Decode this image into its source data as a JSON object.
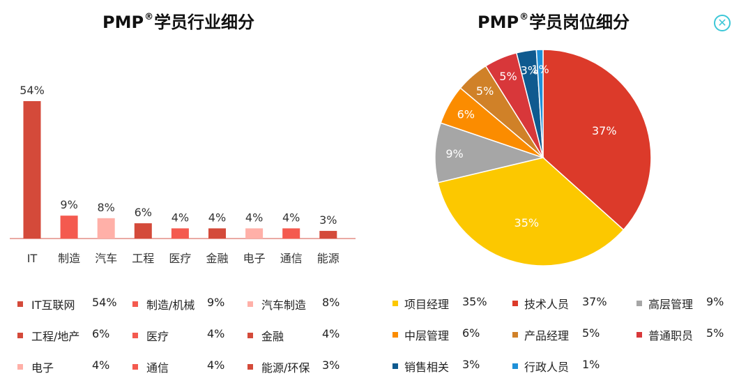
{
  "close_icon": "close-icon",
  "chart_data": [
    {
      "type": "bar",
      "title_main": "PMP",
      "title_sup": "®",
      "title_rest": "学员行业细分",
      "categories": [
        "IT",
        "制造",
        "汽车",
        "工程",
        "医疗",
        "金融",
        "电子",
        "通信",
        "能源"
      ],
      "values": [
        54,
        9,
        8,
        6,
        4,
        4,
        4,
        4,
        3
      ],
      "value_labels": [
        "54%",
        "9%",
        "8%",
        "6%",
        "4%",
        "4%",
        "4%",
        "4%",
        "3%"
      ],
      "colors": [
        "#d44a3a",
        "#f45a4f",
        "#ffb0a8",
        "#d44a3a",
        "#f45a4f",
        "#d44a3a",
        "#ffb0a8",
        "#f45a4f",
        "#d44a3a"
      ],
      "ylim": [
        0,
        54
      ],
      "legend": [
        {
          "label": "IT互联网",
          "value": "54%",
          "color": "#d44a3a"
        },
        {
          "label": "制造/机械",
          "value": "9%",
          "color": "#f45a4f"
        },
        {
          "label": "汽车制造",
          "value": "8%",
          "color": "#ffb0a8"
        },
        {
          "label": "工程/地产",
          "value": "6%",
          "color": "#d44a3a"
        },
        {
          "label": "医疗",
          "value": "4%",
          "color": "#f45a4f"
        },
        {
          "label": "金融",
          "value": "4%",
          "color": "#d44a3a"
        },
        {
          "label": "电子",
          "value": "4%",
          "color": "#ffb0a8"
        },
        {
          "label": "通信",
          "value": "4%",
          "color": "#f45a4f"
        },
        {
          "label": "能源/环保",
          "value": "3%",
          "color": "#d44a3a"
        }
      ]
    },
    {
      "type": "pie",
      "title_main": "PMP",
      "title_sup": "®",
      "title_rest": "学员岗位细分",
      "slices": [
        {
          "label": "技术人员",
          "value": 37,
          "text": "37%",
          "color": "#dc3a2a"
        },
        {
          "label": "项目经理",
          "value": 35,
          "text": "35%",
          "color": "#fcc800"
        },
        {
          "label": "高层管理",
          "value": 9,
          "text": "9%",
          "color": "#a6a6a6"
        },
        {
          "label": "中层管理",
          "value": 6,
          "text": "6%",
          "color": "#fb8c00"
        },
        {
          "label": "产品经理",
          "value": 5,
          "text": "5%",
          "color": "#d08128"
        },
        {
          "label": "普通职员",
          "value": 5,
          "text": "5%",
          "color": "#d8373a"
        },
        {
          "label": "销售相关",
          "value": 3,
          "text": "3%",
          "color": "#0f5a8f"
        },
        {
          "label": "行政人员",
          "value": 1,
          "text": "1%",
          "color": "#1e90d8"
        }
      ],
      "legend": [
        {
          "label": "项目经理",
          "value": "35%",
          "color": "#fcc800"
        },
        {
          "label": "技术人员",
          "value": "37%",
          "color": "#dc3a2a"
        },
        {
          "label": "高层管理",
          "value": "9%",
          "color": "#a6a6a6"
        },
        {
          "label": "中层管理",
          "value": "6%",
          "color": "#fb8c00"
        },
        {
          "label": "产品经理",
          "value": "5%",
          "color": "#d08128"
        },
        {
          "label": "普通职员",
          "value": "5%",
          "color": "#d8373a"
        },
        {
          "label": "销售相关",
          "value": "3%",
          "color": "#0f5a8f"
        },
        {
          "label": "行政人员",
          "value": "1%",
          "color": "#1e90d8"
        }
      ]
    }
  ]
}
